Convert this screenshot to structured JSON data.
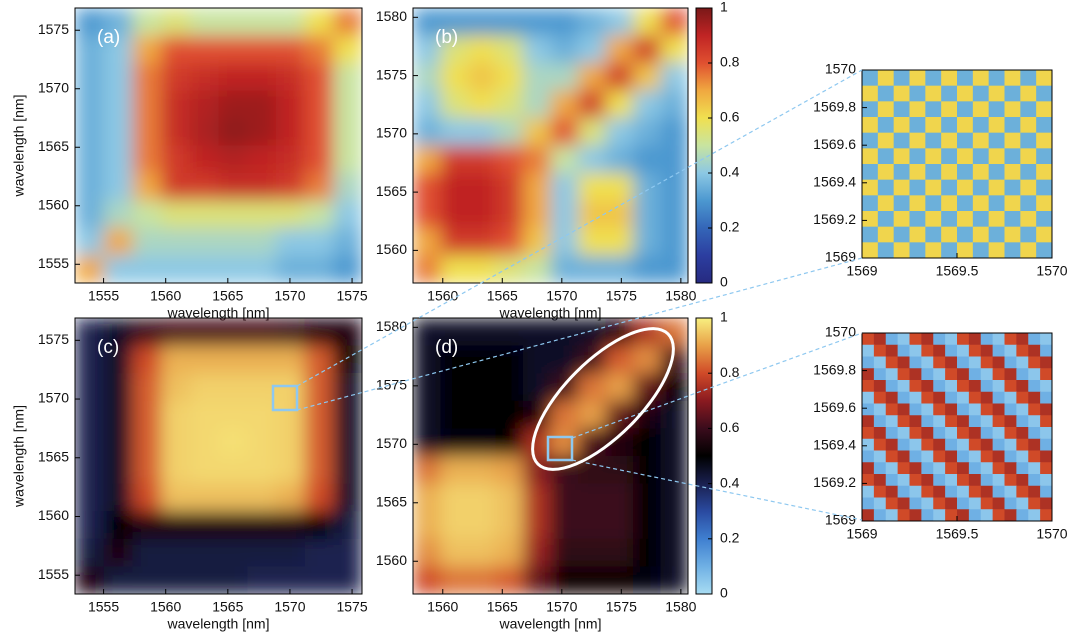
{
  "chart_data": [
    {
      "type": "heatmap",
      "label": "(a)",
      "xlabel": "wavelength [nm]",
      "ylabel": "wavelength [nm]",
      "xlim": [
        1552.7,
        1575.8
      ],
      "ylim": [
        1553.4,
        1576.9
      ],
      "xticks": [
        1555,
        1560,
        1565,
        1570,
        1575
      ],
      "yticks": [
        1555,
        1560,
        1565,
        1570,
        1575
      ],
      "zlim": [
        0,
        1
      ],
      "smooth": true,
      "colormap": [
        "#262a80",
        "#2c3ea0",
        "#3466b8",
        "#4c98d0",
        "#8cc8e4",
        "#c8e4a0",
        "#f0e050",
        "#f0a840",
        "#e05030",
        "#c02424",
        "#7a1818"
      ],
      "z": [
        [
          0.3,
          0.35,
          0.5,
          0.55,
          0.5,
          0.5,
          0.5,
          0.5,
          0.6,
          0.75
        ],
        [
          0.35,
          0.4,
          0.7,
          0.8,
          0.8,
          0.8,
          0.8,
          0.8,
          0.75,
          0.6
        ],
        [
          0.35,
          0.4,
          0.75,
          0.85,
          0.88,
          0.9,
          0.9,
          0.88,
          0.8,
          0.5
        ],
        [
          0.35,
          0.4,
          0.75,
          0.88,
          0.92,
          0.95,
          0.95,
          0.9,
          0.8,
          0.5
        ],
        [
          0.35,
          0.4,
          0.75,
          0.88,
          0.93,
          0.97,
          0.95,
          0.9,
          0.8,
          0.5
        ],
        [
          0.35,
          0.4,
          0.75,
          0.85,
          0.9,
          0.92,
          0.9,
          0.88,
          0.8,
          0.5
        ],
        [
          0.35,
          0.4,
          0.7,
          0.85,
          0.85,
          0.88,
          0.88,
          0.85,
          0.75,
          0.45
        ],
        [
          0.35,
          0.45,
          0.5,
          0.55,
          0.55,
          0.55,
          0.55,
          0.55,
          0.5,
          0.4
        ],
        [
          0.4,
          0.7,
          0.45,
          0.45,
          0.45,
          0.45,
          0.45,
          0.4,
          0.4,
          0.35
        ],
        [
          0.7,
          0.4,
          0.4,
          0.4,
          0.4,
          0.4,
          0.4,
          0.35,
          0.35,
          0.3
        ]
      ]
    },
    {
      "type": "heatmap",
      "label": "(b)",
      "xlabel": "wavelength [nm]",
      "xlim": [
        1557.5,
        1580.6
      ],
      "ylim": [
        1557.2,
        1580.8
      ],
      "xticks": [
        1560,
        1565,
        1570,
        1575,
        1580
      ],
      "yticks": [
        1560,
        1565,
        1570,
        1575,
        1580
      ],
      "zlim": [
        0,
        1
      ],
      "smooth": true,
      "colorbar_ticks": [
        0,
        0.2,
        0.4,
        0.6,
        0.8,
        1
      ],
      "colormap": [
        "#262a80",
        "#2c3ea0",
        "#3466b8",
        "#4c98d0",
        "#8cc8e4",
        "#c8e4a0",
        "#f0e050",
        "#f0a840",
        "#e05030",
        "#c02424",
        "#7a1818"
      ],
      "z": [
        [
          0.3,
          0.3,
          0.3,
          0.3,
          0.3,
          0.3,
          0.35,
          0.4,
          0.6,
          0.8
        ],
        [
          0.4,
          0.55,
          0.6,
          0.55,
          0.4,
          0.35,
          0.4,
          0.7,
          0.85,
          0.6
        ],
        [
          0.45,
          0.6,
          0.65,
          0.6,
          0.45,
          0.45,
          0.7,
          0.85,
          0.65,
          0.4
        ],
        [
          0.4,
          0.55,
          0.6,
          0.55,
          0.45,
          0.7,
          0.85,
          0.6,
          0.4,
          0.35
        ],
        [
          0.35,
          0.4,
          0.4,
          0.45,
          0.65,
          0.8,
          0.55,
          0.4,
          0.35,
          0.3
        ],
        [
          0.7,
          0.85,
          0.85,
          0.8,
          0.75,
          0.5,
          0.4,
          0.35,
          0.3,
          0.3
        ],
        [
          0.8,
          0.9,
          0.9,
          0.85,
          0.7,
          0.4,
          0.6,
          0.6,
          0.35,
          0.3
        ],
        [
          0.8,
          0.9,
          0.9,
          0.85,
          0.7,
          0.4,
          0.65,
          0.65,
          0.35,
          0.3
        ],
        [
          0.7,
          0.85,
          0.85,
          0.8,
          0.65,
          0.4,
          0.6,
          0.6,
          0.35,
          0.3
        ],
        [
          0.75,
          0.6,
          0.6,
          0.55,
          0.5,
          0.35,
          0.35,
          0.35,
          0.3,
          0.3
        ]
      ]
    },
    {
      "type": "heatmap",
      "label": "(c)",
      "xlabel": "wavelength [nm]",
      "ylabel": "wavelength [nm]",
      "xlim": [
        1552.7,
        1575.8
      ],
      "ylim": [
        1553.4,
        1576.9
      ],
      "xticks": [
        1555,
        1560,
        1565,
        1570,
        1575
      ],
      "yticks": [
        1555,
        1560,
        1565,
        1570,
        1575
      ],
      "zlim": [
        0,
        1
      ],
      "smooth": true,
      "colormap": [
        "#a8dcf2",
        "#6fb0e4",
        "#3f7fd0",
        "#2a4aa0",
        "#1a2050",
        "#000000",
        "#3a0c1c",
        "#8a1a20",
        "#d04a28",
        "#e8a048",
        "#f8f080"
      ],
      "z": [
        [
          0.4,
          0.45,
          0.6,
          0.62,
          0.62,
          0.62,
          0.62,
          0.6,
          0.55,
          0.55
        ],
        [
          0.4,
          0.45,
          0.8,
          0.92,
          0.92,
          0.92,
          0.92,
          0.92,
          0.82,
          0.5
        ],
        [
          0.4,
          0.45,
          0.82,
          0.94,
          0.96,
          0.96,
          0.96,
          0.96,
          0.82,
          0.45
        ],
        [
          0.4,
          0.45,
          0.82,
          0.96,
          0.97,
          0.97,
          0.97,
          0.96,
          0.82,
          0.45
        ],
        [
          0.4,
          0.45,
          0.82,
          0.96,
          0.97,
          0.98,
          0.97,
          0.96,
          0.82,
          0.45
        ],
        [
          0.4,
          0.45,
          0.82,
          0.96,
          0.97,
          0.97,
          0.97,
          0.96,
          0.82,
          0.45
        ],
        [
          0.4,
          0.45,
          0.8,
          0.94,
          0.94,
          0.94,
          0.94,
          0.92,
          0.8,
          0.45
        ],
        [
          0.4,
          0.5,
          0.55,
          0.55,
          0.55,
          0.55,
          0.55,
          0.55,
          0.5,
          0.42
        ],
        [
          0.42,
          0.55,
          0.42,
          0.42,
          0.42,
          0.42,
          0.42,
          0.42,
          0.4,
          0.4
        ],
        [
          0.55,
          0.42,
          0.42,
          0.42,
          0.42,
          0.42,
          0.4,
          0.4,
          0.4,
          0.4
        ]
      ]
    },
    {
      "type": "heatmap",
      "label": "(d)",
      "xlabel": "wavelength [nm]",
      "xlim": [
        1557.5,
        1580.6
      ],
      "ylim": [
        1557.2,
        1580.8
      ],
      "xticks": [
        1560,
        1565,
        1570,
        1575,
        1580
      ],
      "yticks": [
        1560,
        1565,
        1570,
        1575,
        1580
      ],
      "zlim": [
        0,
        1
      ],
      "smooth": true,
      "colorbar_ticks": [
        0,
        0.2,
        0.4,
        0.6,
        0.8,
        1
      ],
      "colormap": [
        "#a8dcf2",
        "#6fb0e4",
        "#3f7fd0",
        "#2a4aa0",
        "#1a2050",
        "#000000",
        "#3a0c1c",
        "#8a1a20",
        "#d04a28",
        "#e8a048",
        "#f8f080"
      ],
      "z": [
        [
          0.45,
          0.45,
          0.45,
          0.45,
          0.45,
          0.45,
          0.45,
          0.55,
          0.75,
          0.85
        ],
        [
          0.45,
          0.5,
          0.5,
          0.5,
          0.45,
          0.45,
          0.6,
          0.82,
          0.88,
          0.6
        ],
        [
          0.45,
          0.5,
          0.5,
          0.5,
          0.45,
          0.6,
          0.85,
          0.9,
          0.65,
          0.5
        ],
        [
          0.45,
          0.5,
          0.5,
          0.5,
          0.55,
          0.85,
          0.9,
          0.65,
          0.55,
          0.45
        ],
        [
          0.45,
          0.48,
          0.48,
          0.5,
          0.75,
          0.88,
          0.62,
          0.55,
          0.5,
          0.45
        ],
        [
          0.85,
          0.92,
          0.92,
          0.9,
          0.7,
          0.6,
          0.58,
          0.58,
          0.5,
          0.45
        ],
        [
          0.92,
          0.96,
          0.96,
          0.94,
          0.75,
          0.6,
          0.6,
          0.6,
          0.5,
          0.45
        ],
        [
          0.92,
          0.96,
          0.96,
          0.94,
          0.75,
          0.6,
          0.6,
          0.6,
          0.5,
          0.45
        ],
        [
          0.88,
          0.94,
          0.94,
          0.92,
          0.72,
          0.58,
          0.58,
          0.58,
          0.5,
          0.45
        ],
        [
          0.8,
          0.85,
          0.85,
          0.82,
          0.65,
          0.52,
          0.52,
          0.52,
          0.48,
          0.45
        ]
      ]
    },
    {
      "type": "heatmap",
      "xlim": [
        1569,
        1570
      ],
      "ylim": [
        1569,
        1570
      ],
      "xticks": [
        1569,
        1569.5,
        1570
      ],
      "yticks": [
        1569,
        1569.2,
        1569.4,
        1569.6,
        1569.8,
        1570
      ],
      "zlim": [
        0,
        1
      ],
      "smooth": false,
      "colormap": [
        "#262a80",
        "#2c3ea0",
        "#3466b8",
        "#4c98d0",
        "#8cc8e4",
        "#c8e4a0",
        "#f0e050",
        "#f0a840",
        "#e05030",
        "#c02424",
        "#7a1818"
      ],
      "z": [
        [
          0.35,
          0.62,
          0.35,
          0.62,
          0.35,
          0.62,
          0.35,
          0.62,
          0.35,
          0.62,
          0.35,
          0.62
        ],
        [
          0.62,
          0.35,
          0.62,
          0.35,
          0.62,
          0.35,
          0.62,
          0.35,
          0.62,
          0.35,
          0.62,
          0.35
        ],
        [
          0.35,
          0.62,
          0.35,
          0.62,
          0.35,
          0.62,
          0.35,
          0.62,
          0.35,
          0.62,
          0.35,
          0.62
        ],
        [
          0.62,
          0.35,
          0.62,
          0.35,
          0.62,
          0.35,
          0.62,
          0.35,
          0.62,
          0.35,
          0.62,
          0.35
        ],
        [
          0.35,
          0.62,
          0.35,
          0.62,
          0.35,
          0.62,
          0.35,
          0.62,
          0.35,
          0.62,
          0.35,
          0.62
        ],
        [
          0.62,
          0.35,
          0.62,
          0.35,
          0.62,
          0.35,
          0.62,
          0.35,
          0.62,
          0.35,
          0.62,
          0.35
        ],
        [
          0.35,
          0.62,
          0.35,
          0.62,
          0.35,
          0.62,
          0.35,
          0.62,
          0.35,
          0.62,
          0.35,
          0.62
        ],
        [
          0.62,
          0.35,
          0.62,
          0.35,
          0.62,
          0.35,
          0.62,
          0.35,
          0.62,
          0.35,
          0.62,
          0.35
        ],
        [
          0.35,
          0.62,
          0.35,
          0.62,
          0.35,
          0.62,
          0.35,
          0.62,
          0.35,
          0.62,
          0.35,
          0.62
        ],
        [
          0.62,
          0.35,
          0.62,
          0.35,
          0.62,
          0.35,
          0.62,
          0.35,
          0.62,
          0.35,
          0.62,
          0.35
        ],
        [
          0.35,
          0.62,
          0.35,
          0.62,
          0.35,
          0.62,
          0.35,
          0.62,
          0.35,
          0.62,
          0.35,
          0.62
        ],
        [
          0.62,
          0.35,
          0.62,
          0.35,
          0.62,
          0.35,
          0.62,
          0.35,
          0.62,
          0.35,
          0.62,
          0.35
        ]
      ]
    },
    {
      "type": "heatmap",
      "xlim": [
        1569,
        1570
      ],
      "ylim": [
        1569,
        1570
      ],
      "xticks": [
        1569,
        1569.5,
        1570
      ],
      "yticks": [
        1569,
        1569.2,
        1569.4,
        1569.6,
        1569.8,
        1570
      ],
      "zlim": [
        0,
        1
      ],
      "smooth": false,
      "colormap": [
        "#a8dcf2",
        "#6fb0e4",
        "#3f7fd0",
        "#2a4aa0",
        "#1a2050",
        "#000000",
        "#3a0c1c",
        "#8a1a20",
        "#d04a28",
        "#e8a048",
        "#f8f080"
      ],
      "z": [
        [
          0.8,
          0.75,
          0.1,
          0.05,
          0.8,
          0.75,
          0.1,
          0.05,
          0.8,
          0.75,
          0.1,
          0.05,
          0.8,
          0.75,
          0.1,
          0.05
        ],
        [
          0.05,
          0.8,
          0.75,
          0.1,
          0.05,
          0.8,
          0.75,
          0.1,
          0.05,
          0.8,
          0.75,
          0.1,
          0.05,
          0.8,
          0.75,
          0.1
        ],
        [
          0.1,
          0.05,
          0.8,
          0.75,
          0.1,
          0.05,
          0.8,
          0.75,
          0.1,
          0.05,
          0.8,
          0.75,
          0.1,
          0.05,
          0.8,
          0.75
        ],
        [
          0.75,
          0.1,
          0.05,
          0.8,
          0.75,
          0.1,
          0.05,
          0.8,
          0.75,
          0.1,
          0.05,
          0.8,
          0.75,
          0.1,
          0.05,
          0.8
        ],
        [
          0.8,
          0.75,
          0.1,
          0.05,
          0.8,
          0.75,
          0.1,
          0.05,
          0.8,
          0.75,
          0.1,
          0.05,
          0.8,
          0.75,
          0.1,
          0.05
        ],
        [
          0.05,
          0.8,
          0.75,
          0.1,
          0.05,
          0.8,
          0.75,
          0.1,
          0.05,
          0.8,
          0.75,
          0.1,
          0.05,
          0.8,
          0.75,
          0.1
        ],
        [
          0.1,
          0.05,
          0.8,
          0.75,
          0.1,
          0.05,
          0.8,
          0.75,
          0.1,
          0.05,
          0.8,
          0.75,
          0.1,
          0.05,
          0.8,
          0.75
        ],
        [
          0.75,
          0.1,
          0.05,
          0.8,
          0.75,
          0.1,
          0.05,
          0.8,
          0.75,
          0.1,
          0.05,
          0.8,
          0.75,
          0.1,
          0.05,
          0.8
        ],
        [
          0.8,
          0.75,
          0.1,
          0.05,
          0.8,
          0.75,
          0.1,
          0.05,
          0.8,
          0.75,
          0.1,
          0.05,
          0.8,
          0.75,
          0.1,
          0.05
        ],
        [
          0.05,
          0.8,
          0.75,
          0.1,
          0.05,
          0.8,
          0.75,
          0.1,
          0.05,
          0.8,
          0.75,
          0.1,
          0.05,
          0.8,
          0.75,
          0.1
        ],
        [
          0.1,
          0.05,
          0.8,
          0.75,
          0.1,
          0.05,
          0.8,
          0.75,
          0.1,
          0.05,
          0.8,
          0.75,
          0.1,
          0.05,
          0.8,
          0.75
        ],
        [
          0.75,
          0.1,
          0.05,
          0.8,
          0.75,
          0.1,
          0.05,
          0.8,
          0.75,
          0.1,
          0.05,
          0.8,
          0.75,
          0.1,
          0.05,
          0.8
        ],
        [
          0.8,
          0.75,
          0.1,
          0.05,
          0.8,
          0.75,
          0.1,
          0.05,
          0.8,
          0.75,
          0.1,
          0.05,
          0.8,
          0.75,
          0.1,
          0.05
        ],
        [
          0.05,
          0.8,
          0.75,
          0.1,
          0.05,
          0.8,
          0.75,
          0.1,
          0.05,
          0.8,
          0.75,
          0.1,
          0.05,
          0.8,
          0.75,
          0.1
        ],
        [
          0.1,
          0.05,
          0.8,
          0.75,
          0.1,
          0.05,
          0.8,
          0.75,
          0.1,
          0.05,
          0.8,
          0.75,
          0.1,
          0.05,
          0.8,
          0.75
        ],
        [
          0.75,
          0.1,
          0.05,
          0.8,
          0.75,
          0.1,
          0.05,
          0.8,
          0.75,
          0.1,
          0.05,
          0.8,
          0.75,
          0.1,
          0.05,
          0.8
        ]
      ]
    }
  ]
}
